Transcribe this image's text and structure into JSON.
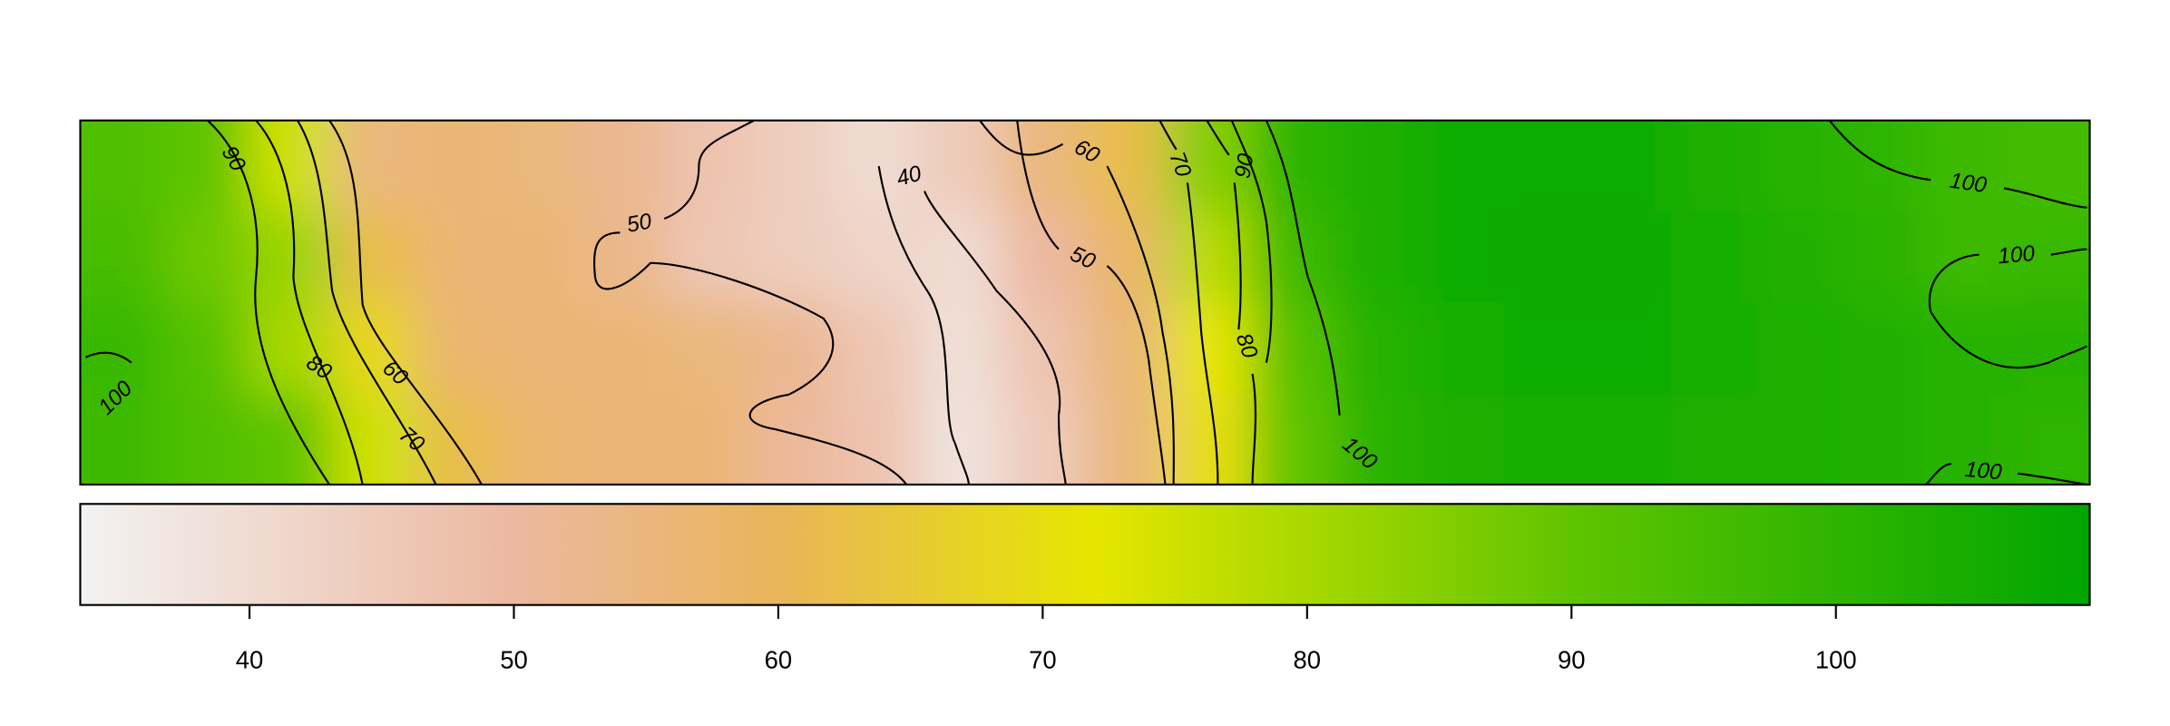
{
  "chart_data": {
    "type": "heatmap",
    "values": [
      [
        93,
        90,
        75,
        55,
        56,
        55,
        52,
        47,
        44,
        40,
        45,
        55,
        62,
        85,
        100,
        104,
        106,
        106,
        106,
        104,
        102,
        100,
        97,
        96
      ],
      [
        95,
        88,
        82,
        62,
        56,
        56,
        53,
        46,
        44,
        42,
        40,
        50,
        58,
        78,
        97,
        104,
        106,
        107,
        107,
        105,
        103,
        101,
        97,
        98
      ],
      [
        98,
        92,
        80,
        68,
        57,
        56,
        56,
        55,
        52,
        46,
        39,
        47,
        56,
        72,
        92,
        102,
        105,
        106,
        106,
        105,
        104,
        103,
        102,
        102
      ],
      [
        97,
        93,
        90,
        75,
        62,
        57,
        56,
        56,
        51,
        47,
        38,
        45,
        55,
        70,
        90,
        101,
        104,
        105,
        105,
        104,
        104,
        103,
        102,
        100
      ]
    ],
    "zlim": [
      33.6,
      109.6
    ],
    "zticks": [
      40,
      50,
      60,
      70,
      80,
      90,
      100
    ],
    "colorscale": [
      [
        33.6,
        "#f2f2f2"
      ],
      [
        50,
        "#ecb8a0"
      ],
      [
        60,
        "#e8b55a"
      ],
      [
        72,
        "#e6e600"
      ],
      [
        80,
        "#a8d800"
      ],
      [
        90,
        "#5fc400"
      ],
      [
        109.6,
        "#00a600"
      ]
    ],
    "contour_levels": [
      90,
      80,
      70,
      60,
      100,
      50,
      40,
      60,
      50,
      70,
      90,
      80,
      100,
      100,
      100,
      100
    ]
  }
}
